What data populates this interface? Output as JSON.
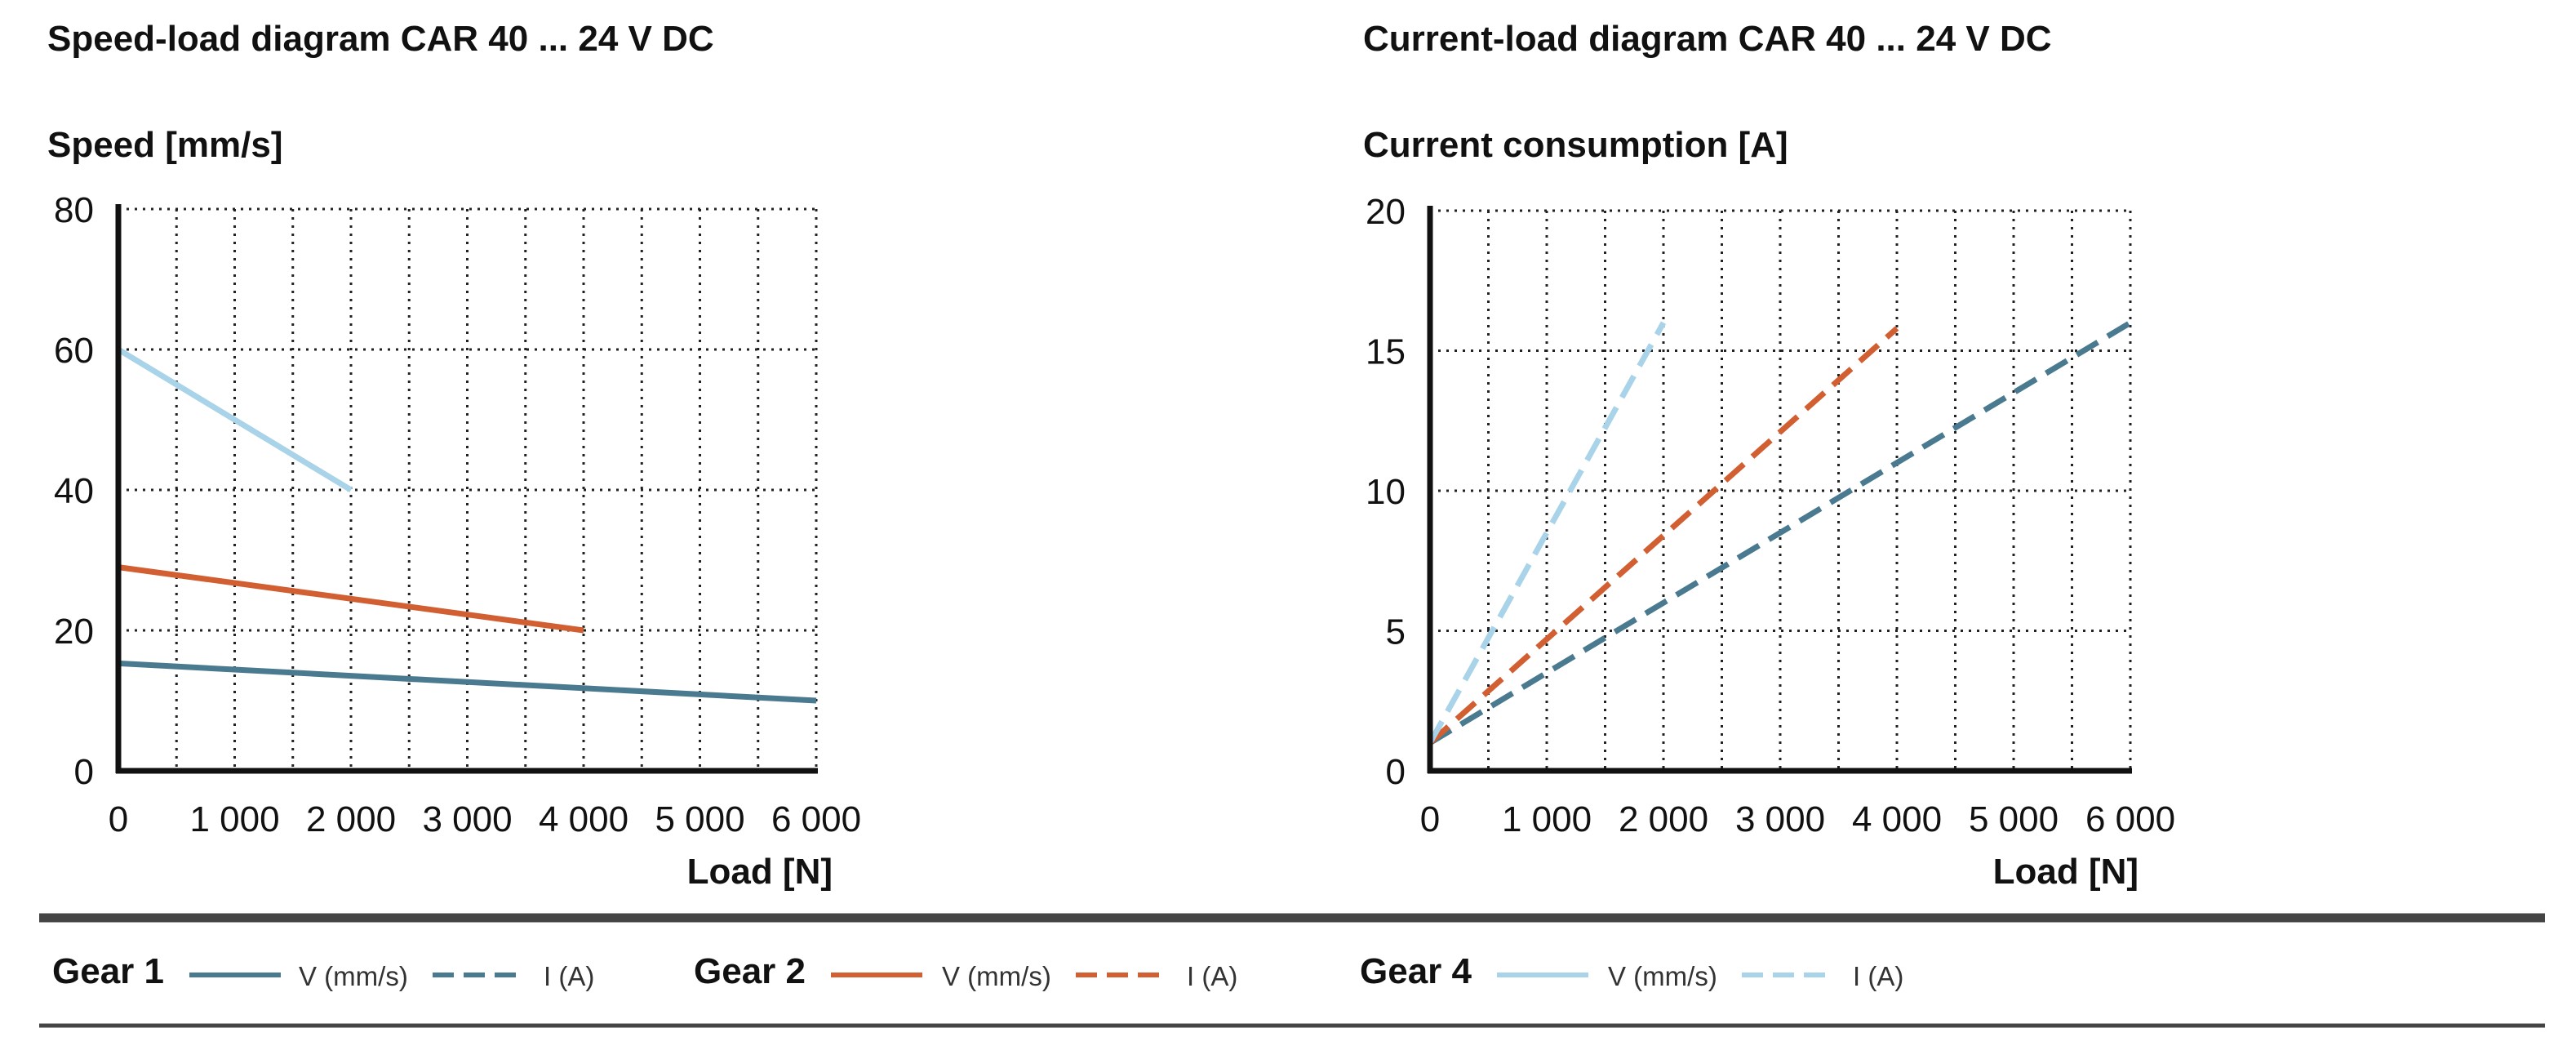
{
  "colors": {
    "gear1": "#4a7a90",
    "gear2": "#d25f31",
    "gear4": "#a9d3e8",
    "grid": "#222222",
    "axis": "#111111",
    "rule": "#444444"
  },
  "chart_data": [
    {
      "type": "line",
      "title": "Speed-load diagram CAR 40 ... 24 V DC",
      "ylabel": "Speed [mm/s]",
      "xlabel": "Load [N]",
      "xlim": [
        0,
        6000
      ],
      "ylim": [
        0,
        80
      ],
      "xticks": [
        0,
        500,
        1000,
        1500,
        2000,
        2500,
        3000,
        3500,
        4000,
        4500,
        5000,
        5500,
        6000
      ],
      "xtick_labels": [
        "0",
        "",
        "1 000",
        "",
        "2 000",
        "",
        "3 000",
        "",
        "4 000",
        "",
        "5 000",
        "",
        "6 000"
      ],
      "yticks": [
        0,
        20,
        40,
        60,
        80
      ],
      "ytick_labels": [
        "0",
        "20",
        "40",
        "60",
        "80"
      ],
      "grid": true,
      "series": [
        {
          "name": "Gear 1 V (mm/s)",
          "gear": "gear1",
          "style": "solid",
          "x": [
            0,
            6000
          ],
          "y": [
            15.3,
            10
          ]
        },
        {
          "name": "Gear 2 V (mm/s)",
          "gear": "gear2",
          "style": "solid",
          "x": [
            0,
            4000
          ],
          "y": [
            29,
            20
          ]
        },
        {
          "name": "Gear 4 V (mm/s)",
          "gear": "gear4",
          "style": "solid",
          "x": [
            0,
            2000
          ],
          "y": [
            60,
            40
          ]
        }
      ]
    },
    {
      "type": "line",
      "title": "Current-load diagram CAR 40 ... 24 V DC",
      "ylabel": "Current consumption [A]",
      "xlabel": "Load [N]",
      "xlim": [
        0,
        6000
      ],
      "ylim": [
        0,
        20
      ],
      "xticks": [
        0,
        500,
        1000,
        1500,
        2000,
        2500,
        3000,
        3500,
        4000,
        4500,
        5000,
        5500,
        6000
      ],
      "xtick_labels": [
        "0",
        "",
        "1 000",
        "",
        "2 000",
        "",
        "3 000",
        "",
        "4 000",
        "",
        "5 000",
        "",
        "6 000"
      ],
      "yticks": [
        0,
        5,
        10,
        15,
        20
      ],
      "ytick_labels": [
        "0",
        "5",
        "10",
        "15",
        "20"
      ],
      "grid": true,
      "series": [
        {
          "name": "Gear 1 I (A)",
          "gear": "gear1",
          "style": "dashed",
          "x": [
            0,
            6000
          ],
          "y": [
            1,
            16
          ]
        },
        {
          "name": "Gear 2 I (A)",
          "gear": "gear2",
          "style": "dashed",
          "x": [
            0,
            4000
          ],
          "y": [
            1,
            15.8
          ]
        },
        {
          "name": "Gear 4 I (A)",
          "gear": "gear4",
          "style": "dashed",
          "x": [
            0,
            2000
          ],
          "y": [
            1,
            16
          ]
        }
      ]
    }
  ],
  "legend": {
    "groups": [
      {
        "gear": "gear1",
        "label": "Gear 1",
        "v_label": "V (mm/s)",
        "i_label": "I (A)"
      },
      {
        "gear": "gear2",
        "label": "Gear 2",
        "v_label": "V (mm/s)",
        "i_label": "I (A)"
      },
      {
        "gear": "gear4",
        "label": "Gear 4",
        "v_label": "V (mm/s)",
        "i_label": "I (A)"
      }
    ]
  }
}
